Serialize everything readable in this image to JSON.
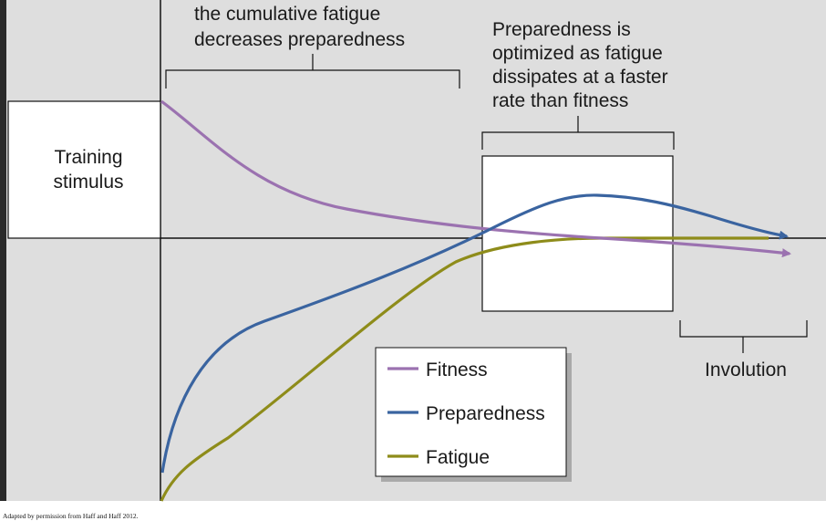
{
  "diagram": {
    "annotations": {
      "left_line1": "the cumulative fatigue",
      "left_line2": "decreases preparedness",
      "right_line1": "Preparedness is",
      "right_line2": "optimized as fatigue",
      "right_line3": "dissipates at a faster",
      "right_line4": "rate than fitness",
      "involution": "Involution"
    },
    "stimulus_box": {
      "line1": "Training",
      "line2": "stimulus"
    },
    "legend": [
      {
        "label": "Fitness",
        "color": "#9b72b0"
      },
      {
        "label": "Preparedness",
        "color": "#3a64a0"
      },
      {
        "label": "Fatigue",
        "color": "#8e8c1a"
      }
    ],
    "curves": {
      "fitness": {
        "name": "fitness-curve",
        "color": "#9b72b0"
      },
      "preparedness": {
        "name": "preparedness-curve",
        "color": "#3a64a0"
      },
      "fatigue": {
        "name": "fatigue-curve",
        "color": "#8e8c1a"
      }
    },
    "credit": "Adapted by permission from Haff and Haff 2012."
  }
}
